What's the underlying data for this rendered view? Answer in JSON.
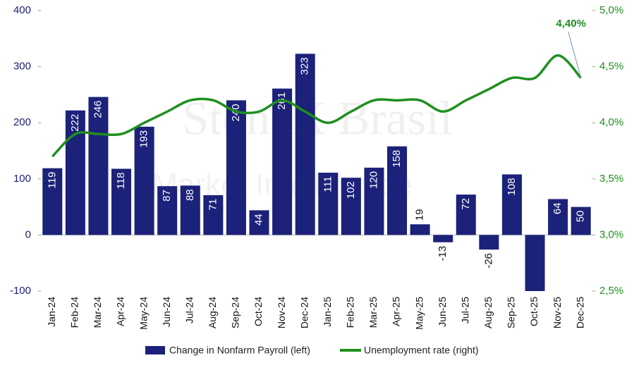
{
  "chart_data": {
    "type": "bar_line",
    "watermark": [
      "StoneX Brasil",
      "Market Intelligence"
    ],
    "categories": [
      "Jan-24",
      "Feb-24",
      "Mar-24",
      "Apr-24",
      "May-24",
      "Jun-24",
      "Jul-24",
      "Aug-24",
      "Sep-24",
      "Oct-24",
      "Nov-24",
      "Dec-24",
      "Jan-25",
      "Feb-25",
      "Mar-25",
      "Apr-25",
      "May-25",
      "Jun-25",
      "Jul-25",
      "Aug-25",
      "Sep-25",
      "Oct-25",
      "Nov-25",
      "Dec-25"
    ],
    "series": [
      {
        "name": "Change in Nonfarm Payroll (left)",
        "type": "bar",
        "color": "#1c2279",
        "values": [
          119,
          222,
          246,
          118,
          193,
          87,
          88,
          71,
          240,
          44,
          261,
          323,
          111,
          102,
          120,
          158,
          19,
          -13,
          72,
          -26,
          108,
          -105,
          64,
          50
        ],
        "value_labels": [
          "119",
          "222",
          "246",
          "118",
          "193",
          "87",
          "88",
          "71",
          "240",
          "44",
          "261",
          "323",
          "111",
          "102",
          "120",
          "158",
          "19",
          "-13",
          "72",
          "-26",
          "108",
          null,
          "64",
          "50"
        ]
      },
      {
        "name": "Unemployment rate (right)",
        "type": "line",
        "axis": "y2",
        "color": "#1f8f1f",
        "values": [
          3.7,
          3.9,
          3.9,
          3.9,
          4.0,
          4.1,
          4.2,
          4.2,
          4.1,
          4.1,
          4.2,
          4.1,
          4.0,
          4.1,
          4.2,
          4.2,
          4.2,
          4.1,
          4.2,
          4.3,
          4.4,
          4.4,
          4.6,
          4.4
        ],
        "value_labels": [
          null,
          null,
          null,
          null,
          null,
          null,
          null,
          null,
          null,
          null,
          null,
          null,
          null,
          null,
          null,
          null,
          null,
          null,
          null,
          null,
          null,
          null,
          null,
          "4,40%"
        ]
      }
    ],
    "ylim": [
      -100,
      400
    ],
    "yticks": [
      -100,
      0,
      100,
      200,
      300,
      400
    ],
    "y2lim": [
      2.5,
      5.0
    ],
    "y2ticks": [
      {
        "value": 2.5,
        "label": "2,5%"
      },
      {
        "value": 3.0,
        "label": "3,0%"
      },
      {
        "value": 3.5,
        "label": "3,5%"
      },
      {
        "value": 4.0,
        "label": "4,0%"
      },
      {
        "value": 4.5,
        "label": "4,5%"
      },
      {
        "value": 5.0,
        "label": "5,0%"
      }
    ],
    "legend": "bottom"
  }
}
